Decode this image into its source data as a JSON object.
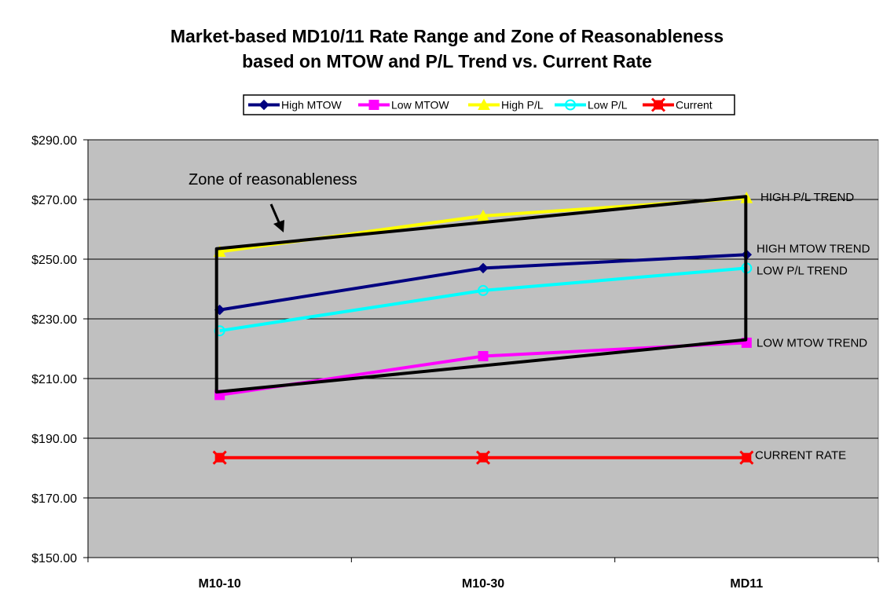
{
  "chart_data": {
    "type": "line",
    "title_lines": [
      "Market-based MD10/11 Rate Range and Zone of Reasonableness",
      "based on MTOW and P/L Trend vs. Current Rate"
    ],
    "categories": [
      "M10-10",
      "M10-30",
      "MD11"
    ],
    "ylim": [
      150,
      290
    ],
    "yticks": [
      150,
      170,
      190,
      210,
      230,
      250,
      270,
      290
    ],
    "ytick_labels": [
      "$150.00",
      "$170.00",
      "$190.00",
      "$210.00",
      "$230.00",
      "$250.00",
      "$270.00",
      "$290.00"
    ],
    "grid": "horizontal",
    "legend_position": "top",
    "plot_background": "#c0c0c0",
    "series": [
      {
        "name": "High MTOW",
        "color": "#000080",
        "marker": "diamond",
        "values": [
          233,
          247,
          251.5
        ]
      },
      {
        "name": "Low MTOW",
        "color": "#ff00ff",
        "marker": "square",
        "values": [
          204.5,
          217.5,
          222
        ]
      },
      {
        "name": "High P/L",
        "color": "#ffff00",
        "marker": "triangle",
        "values": [
          252.5,
          264.5,
          270.5
        ]
      },
      {
        "name": "Low P/L",
        "color": "#00ffff",
        "marker": "circle",
        "values": [
          226,
          239.5,
          247
        ]
      },
      {
        "name": "Current",
        "color": "#ff0000",
        "marker": "star",
        "values": [
          183.5,
          183.5,
          183.5
        ]
      }
    ],
    "zone": {
      "label": "Zone of reasonableness",
      "color": "#000000",
      "top": [
        253.5,
        271
      ],
      "bottom": [
        205.5,
        223
      ]
    },
    "annotations": [
      {
        "text": "HIGH P/L TREND",
        "value": 270.5
      },
      {
        "text": "HIGH  MTOW TREND",
        "value": 251.5
      },
      {
        "text": "LOW P/L TREND",
        "value": 247
      },
      {
        "text": "LOW  MTOW TREND",
        "value": 222
      },
      {
        "text": "CURRENT  RATE",
        "value": 183.5
      }
    ]
  }
}
